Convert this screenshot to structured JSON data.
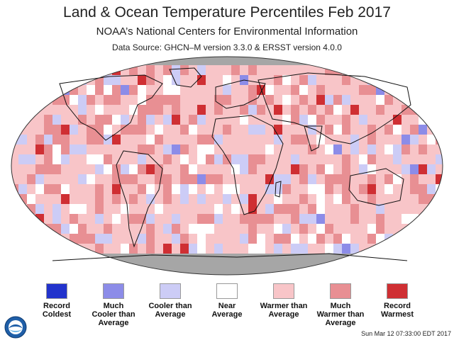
{
  "header": {
    "title": "Land & Ocean Temperature Percentiles Feb 2017",
    "subtitle": "NOAA’s National Centers for Environmental Information",
    "source": "Data Source: GHCN–M version 3.3.0 & ERSST version 4.0.0"
  },
  "colors": {
    "record_coldest": "#2233cc",
    "much_cooler": "#8c8ce8",
    "cooler": "#ccccf6",
    "near": "#ffffff",
    "warmer": "#f8c5c8",
    "much_warmer": "#e88f93",
    "record_warmest": "#cf2f33",
    "no_data": "#a6a6a6"
  },
  "legend": [
    {
      "label": "Record\nColdest",
      "color": "#2233cc"
    },
    {
      "label": "Much\nCooler than\nAverage",
      "color": "#8c8ce8"
    },
    {
      "label": "Cooler than\nAverage",
      "color": "#ccccf6"
    },
    {
      "label": "Near\nAverage",
      "color": "#ffffff"
    },
    {
      "label": "Warmer than\nAverage",
      "color": "#f8c5c8"
    },
    {
      "label": "Much\nWarmer than\nAverage",
      "color": "#e88f93"
    },
    {
      "label": "Record\nWarmest",
      "color": "#cf2f33"
    }
  ],
  "timestamp": "Sun Mar 12 07:33:00 EDT 2017",
  "logo": {
    "icon": "noaa-logo"
  }
}
